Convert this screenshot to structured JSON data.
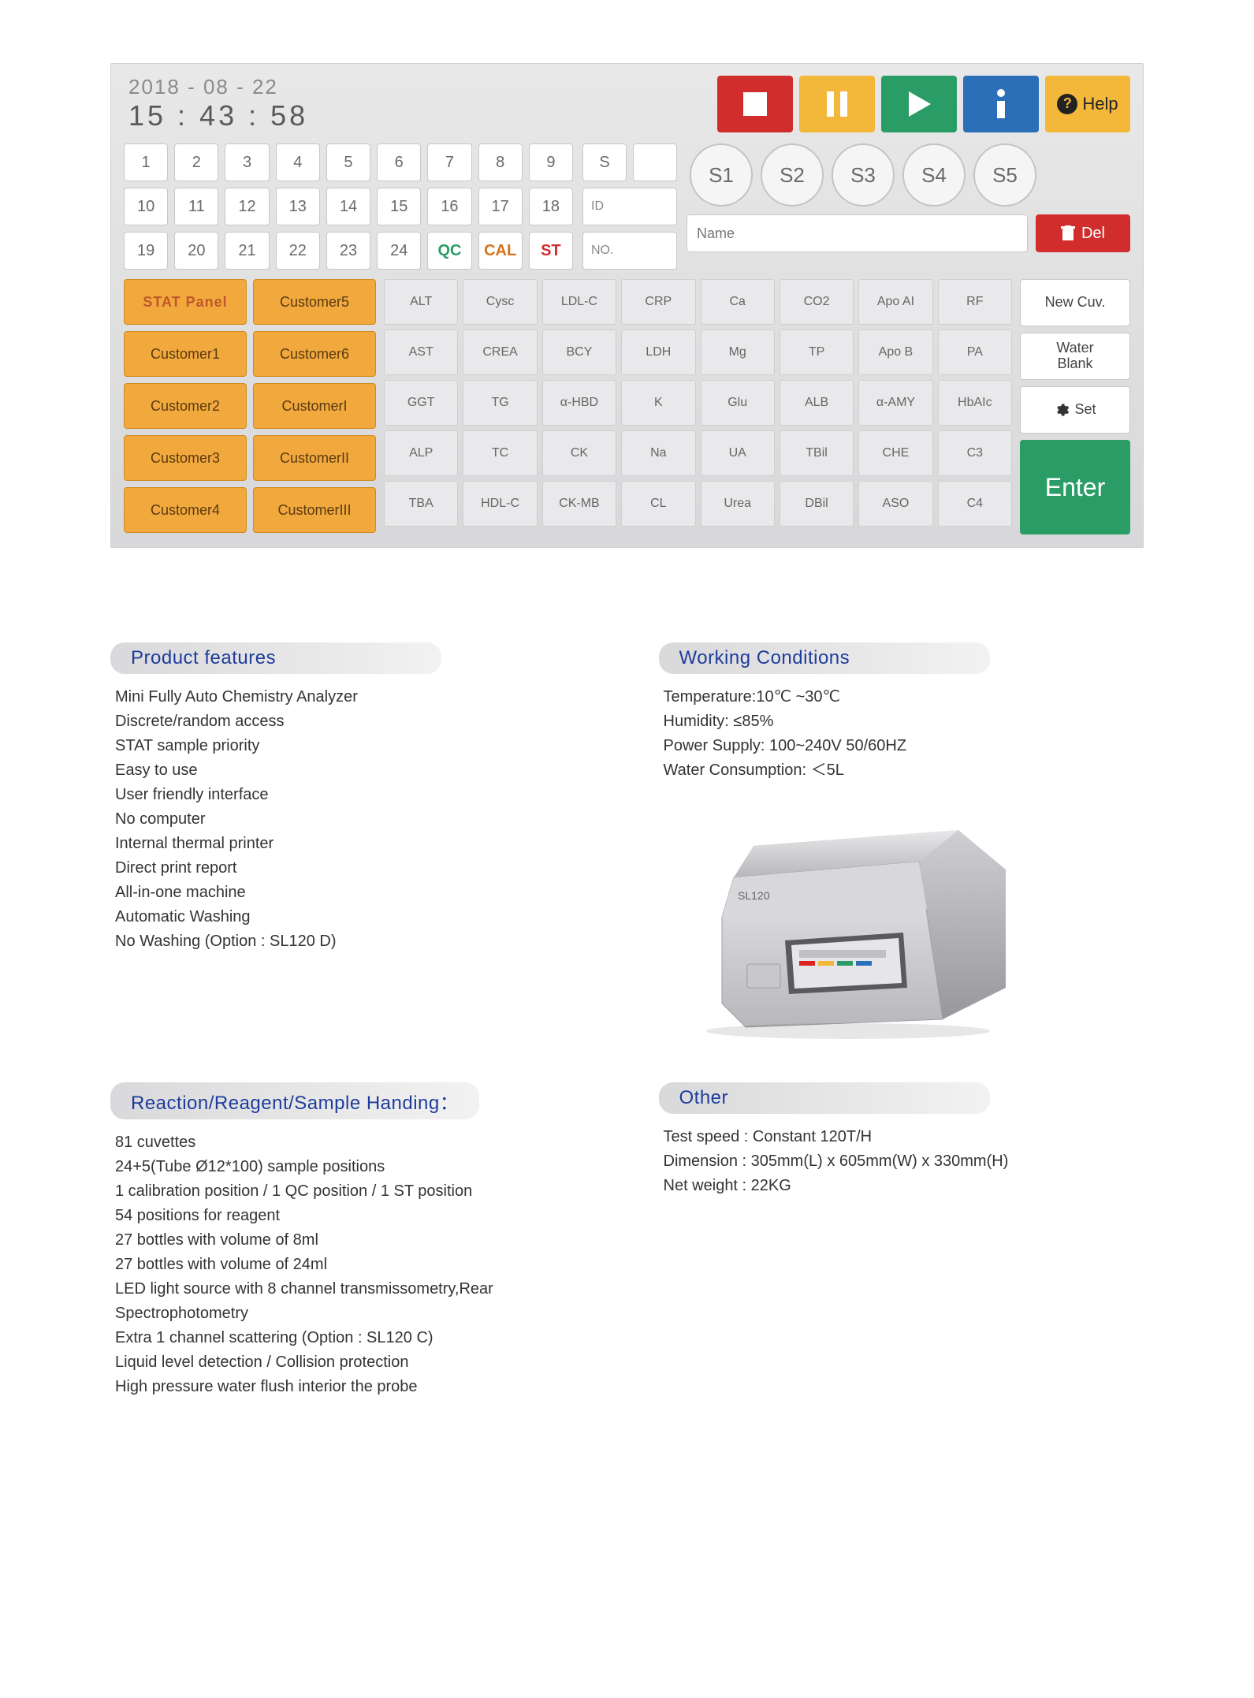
{
  "colors": {
    "screen_bg": "#e1e1e3",
    "stop": "#d22d2d",
    "pause": "#f3b83a",
    "play": "#2a9d66",
    "info": "#2b6fb8",
    "panel": "#f1a93e",
    "spec_head_text": "#1e3c9c"
  },
  "datetime": {
    "date": "2018 - 08 - 22",
    "time": "15 : 43 : 58"
  },
  "help_label": "Help",
  "numpad_row1": [
    "1",
    "2",
    "3",
    "4",
    "5",
    "6",
    "7",
    "8",
    "9"
  ],
  "numpad_row2": [
    "10",
    "11",
    "12",
    "13",
    "14",
    "15",
    "16",
    "17",
    "18"
  ],
  "numpad_row3": [
    "19",
    "20",
    "21",
    "22",
    "23",
    "24"
  ],
  "mid_row1": [
    "S",
    ""
  ],
  "mid_row2_label": "ID",
  "mid_row3": {
    "qc": "QC",
    "cal": "CAL",
    "st": "ST",
    "no": "NO."
  },
  "circles": [
    "S1",
    "S2",
    "S3",
    "S4",
    "S5"
  ],
  "name_placeholder": "Name",
  "del_label": "Del",
  "panels": [
    "STAT Panel",
    "Customer5",
    "Customer1",
    "Customer6",
    "Customer2",
    "CustomerI",
    "Customer3",
    "CustomerII",
    "Customer4",
    "CustomerIII"
  ],
  "analytes": [
    [
      "ALT",
      "Cysc",
      "LDL-C",
      "CRP",
      "Ca",
      "CO2",
      "Apo AI",
      "RF"
    ],
    [
      "AST",
      "CREA",
      "BCY",
      "LDH",
      "Mg",
      "TP",
      "Apo B",
      "PA"
    ],
    [
      "GGT",
      "TG",
      "α-HBD",
      "K",
      "Glu",
      "ALB",
      "α-AMY",
      "HbAIc"
    ],
    [
      "ALP",
      "TC",
      "CK",
      "Na",
      "UA",
      "TBil",
      "CHE",
      "C3"
    ],
    [
      "TBA",
      "HDL-C",
      "CK-MB",
      "CL",
      "Urea",
      "DBil",
      "ASO",
      "C4"
    ]
  ],
  "side_buttons": {
    "new_cuv": "New Cuv.",
    "water_blank": "Water\nBlank",
    "set": "Set",
    "enter": "Enter"
  },
  "specs": {
    "features": {
      "title": "Product features",
      "items": [
        "Mini Fully Auto Chemistry Analyzer",
        "Discrete/random access",
        "STAT sample priority",
        "Easy to use",
        "User friendly interface",
        "No computer",
        "Internal thermal printer",
        "Direct print report",
        "All-in-one machine",
        "Automatic Washing",
        "No Washing (Option : SL120 D)"
      ]
    },
    "working": {
      "title": "Working  Conditions",
      "items": [
        "Temperature:10℃ ~30℃",
        "Humidity: ≤85%",
        "Power Supply: 100~240V 50/60HZ",
        "Water Consumption: ＜5L"
      ]
    },
    "reaction": {
      "title": "Reaction/Reagent/Sample Handing：",
      "items": [
        "81 cuvettes",
        "24+5(Tube Ø12*100) sample positions",
        "1 calibration position / 1 QC position / 1 ST position",
        "54 positions for reagent",
        "27 bottles with volume of 8ml",
        "27 bottles with volume of 24ml",
        "LED light source with 8 channel transmissometry,Rear",
        "Spectrophotometry",
        "Extra 1 channel scattering (Option : SL120 C)",
        "Liquid level detection / Collision protection",
        "High pressure water flush interior the probe"
      ]
    },
    "other": {
      "title": "Other",
      "items": [
        "Test speed : Constant 120T/H",
        "Dimension : 305mm(L) x 605mm(W)  x 330mm(H)",
        "Net weight : 22KG"
      ]
    }
  },
  "device_label": "SL120"
}
